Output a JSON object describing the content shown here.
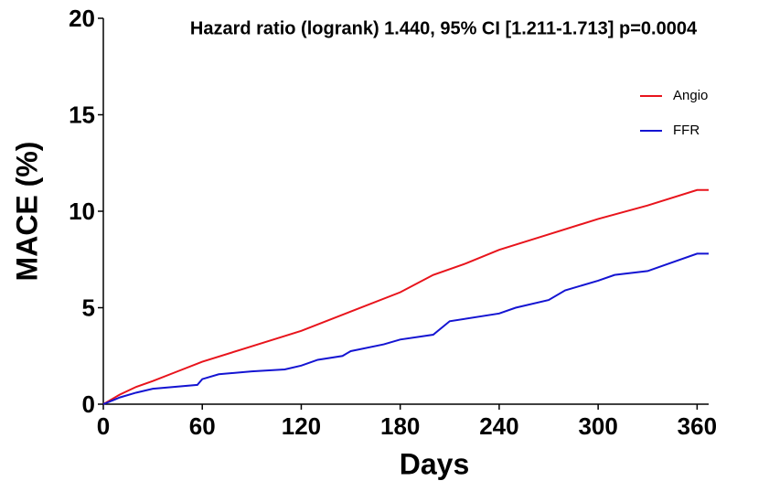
{
  "chart_data": {
    "type": "line",
    "title": "Hazard ratio (logrank) 1.440, 95% CI [1.211-1.713] p=0.0004",
    "x_label": "Days",
    "y_label": "MACE (%)",
    "series": [
      {
        "name": "Angio",
        "color": "#e8141c",
        "x": [
          0,
          10,
          20,
          30,
          45,
          60,
          90,
          120,
          150,
          180,
          200,
          220,
          240,
          270,
          300,
          330,
          360,
          367
        ],
        "values": [
          0,
          0.5,
          0.9,
          1.2,
          1.7,
          2.2,
          3.0,
          3.8,
          4.8,
          5.8,
          6.7,
          7.3,
          8.0,
          8.8,
          9.6,
          10.3,
          11.1,
          11.1
        ]
      },
      {
        "name": "FFR",
        "color": "#1414d2",
        "x": [
          0,
          10,
          20,
          30,
          57,
          60,
          70,
          90,
          110,
          120,
          130,
          145,
          150,
          170,
          180,
          200,
          210,
          240,
          250,
          270,
          280,
          300,
          310,
          330,
          340,
          360,
          367
        ],
        "values": [
          0,
          0.35,
          0.6,
          0.8,
          1.0,
          1.3,
          1.55,
          1.7,
          1.8,
          2.0,
          2.3,
          2.5,
          2.75,
          3.1,
          3.35,
          3.6,
          4.3,
          4.7,
          5.0,
          5.4,
          5.9,
          6.4,
          6.7,
          6.9,
          7.2,
          7.8,
          7.8
        ]
      }
    ],
    "xlim": [
      0,
      367
    ],
    "xticks": [
      0,
      60,
      120,
      180,
      240,
      300,
      360
    ],
    "ylim": [
      0,
      20
    ],
    "yticks": [
      0,
      5,
      10,
      15,
      20
    ],
    "legend": "upper right"
  }
}
